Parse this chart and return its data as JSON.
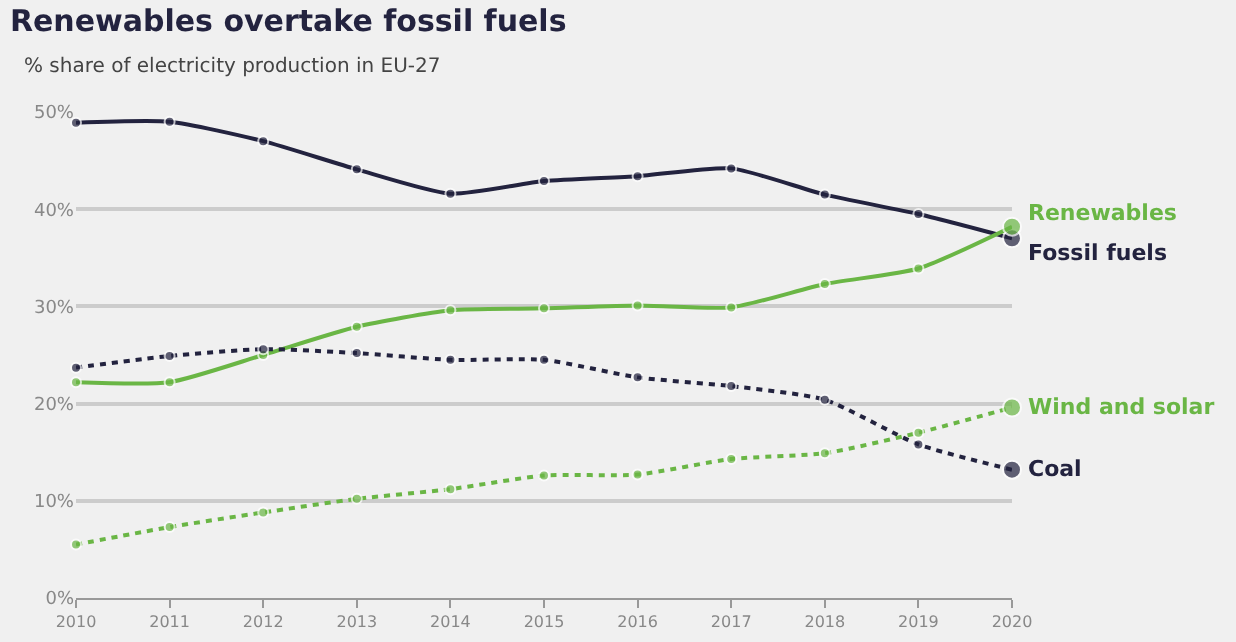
{
  "chart_data": {
    "type": "line",
    "title": "Renewables overtake fossil fuels",
    "subtitle": "% share of electricity production in EU-27",
    "x": [
      2010,
      2011,
      2012,
      2013,
      2014,
      2015,
      2016,
      2017,
      2018,
      2019,
      2020
    ],
    "xlim": [
      2010,
      2020
    ],
    "xticks": [
      2010,
      2011,
      2012,
      2013,
      2014,
      2015,
      2016,
      2017,
      2018,
      2019,
      2020
    ],
    "ylim": [
      0,
      50
    ],
    "yticks": [
      {
        "value": 0,
        "label": "0%"
      },
      {
        "value": 10,
        "label": "10%"
      },
      {
        "value": 20,
        "label": "20%"
      },
      {
        "value": 30,
        "label": "30%"
      },
      {
        "value": 40,
        "label": "40%"
      },
      {
        "value": 50,
        "label": "50%"
      }
    ],
    "grid": "y",
    "legend": false,
    "marker": "circle",
    "series": [
      {
        "name": "Fossil fuels",
        "color": "#23233f",
        "line_style": "solid",
        "values": [
          48.9,
          49.0,
          47.0,
          44.1,
          41.6,
          42.9,
          43.4,
          44.2,
          41.5,
          39.5,
          37.0
        ]
      },
      {
        "name": "Renewables",
        "color": "#6ab645",
        "line_style": "solid",
        "values": [
          22.2,
          22.2,
          25.0,
          27.9,
          29.6,
          29.8,
          30.1,
          29.9,
          32.3,
          33.9,
          38.2
        ]
      },
      {
        "name": "Coal",
        "color": "#23233f",
        "line_style": "dotted",
        "values": [
          23.7,
          24.9,
          25.6,
          25.2,
          24.5,
          24.5,
          22.7,
          21.8,
          20.4,
          15.8,
          13.2
        ]
      },
      {
        "name": "Wind and solar",
        "color": "#6ab645",
        "line_style": "dotted",
        "values": [
          5.5,
          7.3,
          8.8,
          10.2,
          11.2,
          12.6,
          12.7,
          14.3,
          14.9,
          17.0,
          19.6
        ]
      }
    ]
  }
}
